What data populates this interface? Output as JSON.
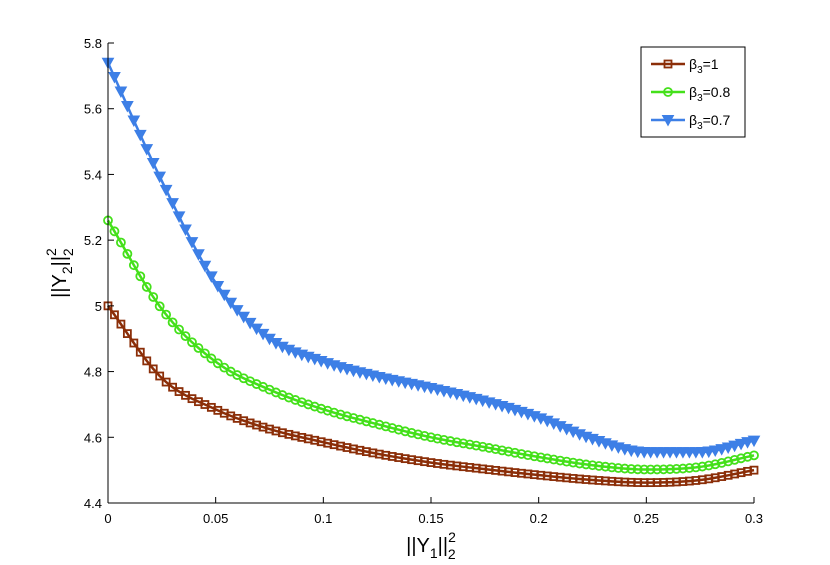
{
  "chart_data": {
    "type": "line",
    "title": "",
    "xlabel": {
      "base": "||Y",
      "sub": "1",
      "mid": "||",
      "sup": "2",
      "sub2": "2"
    },
    "ylabel": {
      "base": "||Y",
      "sub": "2",
      "mid": "||",
      "sup": "2",
      "sub2": "2"
    },
    "xlim": [
      0,
      0.3
    ],
    "ylim": [
      4.4,
      5.8
    ],
    "xticks": [
      0,
      0.05,
      0.1,
      0.15,
      0.2,
      0.25,
      0.3
    ],
    "xtick_labels": [
      "0",
      "0.05",
      "0.1",
      "0.15",
      "0.2",
      "0.25",
      "0.3"
    ],
    "yticks": [
      4.4,
      4.6,
      4.8,
      5,
      5.2,
      5.4,
      5.6,
      5.8
    ],
    "ytick_labels": [
      "4.4",
      "4.6",
      "4.8",
      "5",
      "5.2",
      "5.4",
      "5.6",
      "5.8"
    ],
    "grid": false,
    "legend_position": "top-right",
    "series": [
      {
        "name": "β3=1",
        "legend_label": {
          "base": "β",
          "sub": "3",
          "rest": "=1"
        },
        "color": "#8B2E08",
        "marker": "square",
        "x": [
          0,
          0.025,
          0.05,
          0.075,
          0.1,
          0.125,
          0.15,
          0.175,
          0.2,
          0.225,
          0.25,
          0.275,
          0.3
        ],
        "y": [
          5.0,
          4.78,
          4.685,
          4.625,
          4.585,
          4.55,
          4.523,
          4.503,
          4.485,
          4.47,
          4.462,
          4.47,
          4.5
        ]
      },
      {
        "name": "β3=0.8",
        "legend_label": {
          "base": "β",
          "sub": "3",
          "rest": "=0.8"
        },
        "color": "#44E01A",
        "marker": "circle",
        "x": [
          0,
          0.025,
          0.05,
          0.075,
          0.1,
          0.125,
          0.15,
          0.175,
          0.2,
          0.225,
          0.25,
          0.275,
          0.3
        ],
        "y": [
          5.26,
          4.99,
          4.83,
          4.745,
          4.685,
          4.64,
          4.6,
          4.57,
          4.54,
          4.515,
          4.502,
          4.51,
          4.545
        ]
      },
      {
        "name": "β3=0.7",
        "legend_label": {
          "base": "β",
          "sub": "3",
          "rest": "=0.7"
        },
        "color": "#3D7FE6",
        "marker": "triangle-down",
        "x": [
          0,
          0.025,
          0.05,
          0.075,
          0.1,
          0.125,
          0.15,
          0.175,
          0.2,
          0.225,
          0.25,
          0.275,
          0.3
        ],
        "y": [
          5.74,
          5.38,
          5.07,
          4.9,
          4.83,
          4.785,
          4.75,
          4.71,
          4.66,
          4.595,
          4.555,
          4.555,
          4.59
        ]
      }
    ]
  }
}
